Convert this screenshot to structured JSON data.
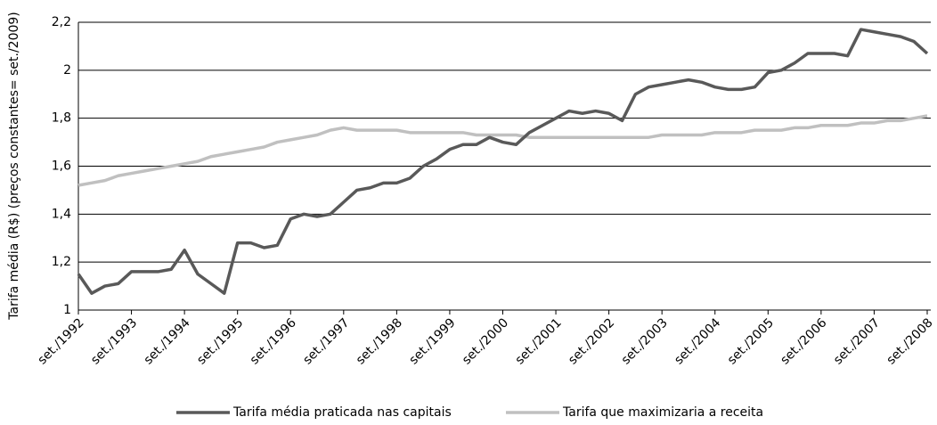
{
  "chart_data": {
    "type": "line",
    "y_label": "Tarifa média (R$) (preços constantes= set./2009)",
    "categories": [
      "set./1992",
      null,
      null,
      null,
      "set./1993",
      null,
      null,
      null,
      "set./1994",
      null,
      null,
      null,
      "set./1995",
      null,
      null,
      null,
      "set./1996",
      null,
      null,
      null,
      "set./1997",
      null,
      null,
      null,
      "set./1998",
      null,
      null,
      null,
      "set./1999",
      null,
      null,
      null,
      "set./2000",
      null,
      null,
      null,
      "set./2001",
      null,
      null,
      null,
      "set./2002",
      null,
      null,
      null,
      "set./2003",
      null,
      null,
      null,
      "set./2004",
      null,
      null,
      null,
      "set./2005",
      null,
      null,
      null,
      "set./2006",
      null,
      null,
      null,
      "set./2007",
      null,
      null,
      null,
      "set./2008"
    ],
    "series": [
      {
        "name": "Tarifa média praticada nas capitais",
        "color": "#595959",
        "values": [
          1.15,
          1.07,
          1.1,
          1.11,
          1.16,
          1.16,
          1.16,
          1.17,
          1.25,
          1.15,
          1.11,
          1.07,
          1.28,
          1.28,
          1.26,
          1.27,
          1.38,
          1.4,
          1.39,
          1.4,
          1.45,
          1.5,
          1.51,
          1.53,
          1.53,
          1.55,
          1.6,
          1.63,
          1.67,
          1.69,
          1.69,
          1.72,
          1.7,
          1.69,
          1.74,
          1.77,
          1.8,
          1.83,
          1.82,
          1.83,
          1.82,
          1.79,
          1.9,
          1.93,
          1.94,
          1.95,
          1.96,
          1.95,
          1.93,
          1.92,
          1.92,
          1.93,
          1.99,
          2.0,
          2.03,
          2.07,
          2.07,
          2.07,
          2.06,
          2.17,
          2.16,
          2.15,
          2.14,
          2.12,
          2.07
        ]
      },
      {
        "name": "Tarifa que maximizaria a receita",
        "color": "#c0c0c0",
        "values": [
          1.52,
          1.53,
          1.54,
          1.56,
          1.57,
          1.58,
          1.59,
          1.6,
          1.61,
          1.62,
          1.64,
          1.65,
          1.66,
          1.67,
          1.68,
          1.7,
          1.71,
          1.72,
          1.73,
          1.75,
          1.76,
          1.75,
          1.75,
          1.75,
          1.75,
          1.74,
          1.74,
          1.74,
          1.74,
          1.74,
          1.73,
          1.73,
          1.73,
          1.73,
          1.72,
          1.72,
          1.72,
          1.72,
          1.72,
          1.72,
          1.72,
          1.72,
          1.72,
          1.72,
          1.73,
          1.73,
          1.73,
          1.73,
          1.74,
          1.74,
          1.74,
          1.75,
          1.75,
          1.75,
          1.76,
          1.76,
          1.77,
          1.77,
          1.77,
          1.78,
          1.78,
          1.79,
          1.79,
          1.8,
          1.81
        ]
      }
    ],
    "ylim": [
      1,
      2.2
    ],
    "yticks": [
      1,
      {
        "value": 1.2,
        "label": "1,2"
      },
      {
        "value": 1.4,
        "label": "1,4"
      },
      {
        "value": 1.6,
        "label": "1,6"
      },
      {
        "value": 1.8,
        "label": "1,8"
      },
      2,
      {
        "value": 2.2,
        "label": "2,2"
      }
    ],
    "grid": true,
    "legend": "bottom"
  }
}
